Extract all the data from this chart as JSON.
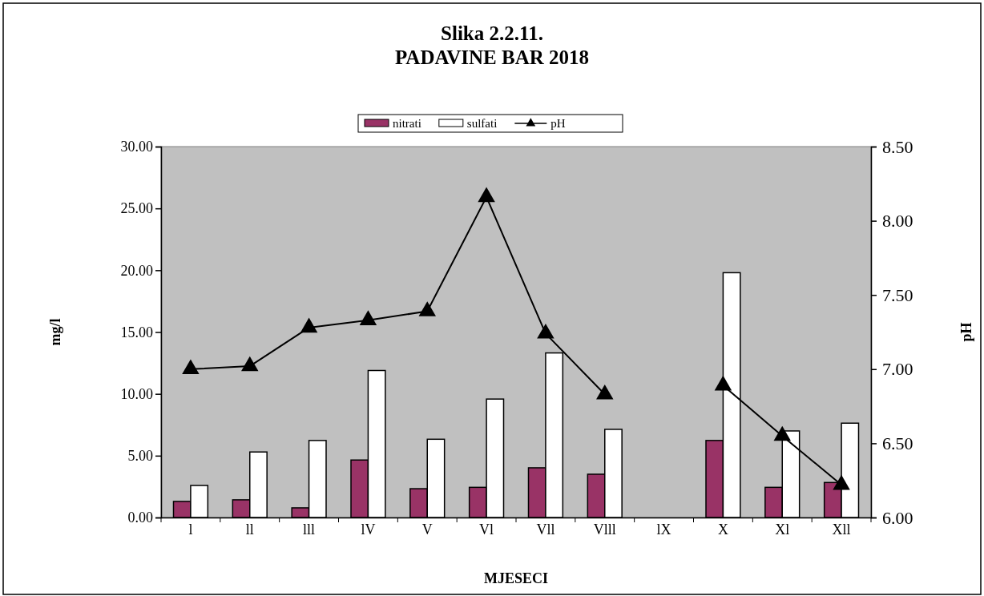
{
  "chart_data": {
    "type": "bar",
    "title": "Slika 2.2.11.\nPADAVINE BAR 2018",
    "xlabel": "MJESECI",
    "ylabel": "mg/l",
    "y2label": "pH",
    "categories": [
      "l",
      "ll",
      "lll",
      "lV",
      "V",
      "Vl",
      "Vll",
      "Vlll",
      "lX",
      "X",
      "Xl",
      "Xll"
    ],
    "series": [
      {
        "name": "nitrati",
        "color": "#993366",
        "values": [
          1.3,
          1.43,
          0.78,
          4.65,
          2.33,
          2.44,
          4.02,
          3.5,
          null,
          6.23,
          2.44,
          2.83
        ]
      },
      {
        "name": "sulfati",
        "color": "#ffffff",
        "values": [
          2.59,
          5.3,
          6.23,
          11.89,
          6.33,
          9.58,
          13.31,
          7.13,
          null,
          19.8,
          7.0,
          7.63
        ]
      },
      {
        "name": "pH",
        "type": "line",
        "axis": "y2",
        "color": "#000000",
        "marker": "triangle",
        "values": [
          7.0,
          7.02,
          7.28,
          7.33,
          7.39,
          8.16,
          7.24,
          6.83,
          null,
          6.89,
          6.55,
          6.22
        ]
      }
    ],
    "ylim": [
      0,
      30
    ],
    "yticks": [
      {
        "value": 0,
        "label": "0.00"
      },
      {
        "value": 5,
        "label": "5.00"
      },
      {
        "value": 10,
        "label": "10.00"
      },
      {
        "value": 15,
        "label": "15.00"
      },
      {
        "value": 20,
        "label": "20.00"
      },
      {
        "value": 25,
        "label": "25.00"
      },
      {
        "value": 30,
        "label": "30.00"
      }
    ],
    "y2lim": [
      6,
      8.5
    ],
    "y2ticks": [
      {
        "value": 6,
        "label": "6.00"
      },
      {
        "value": 6.5,
        "label": "6.50"
      },
      {
        "value": 7,
        "label": "7.00"
      },
      {
        "value": 7.5,
        "label": "7.50"
      },
      {
        "value": 8,
        "label": "8.00"
      },
      {
        "value": 8.5,
        "label": "8.50"
      }
    ],
    "grid": false,
    "legend": "top"
  }
}
